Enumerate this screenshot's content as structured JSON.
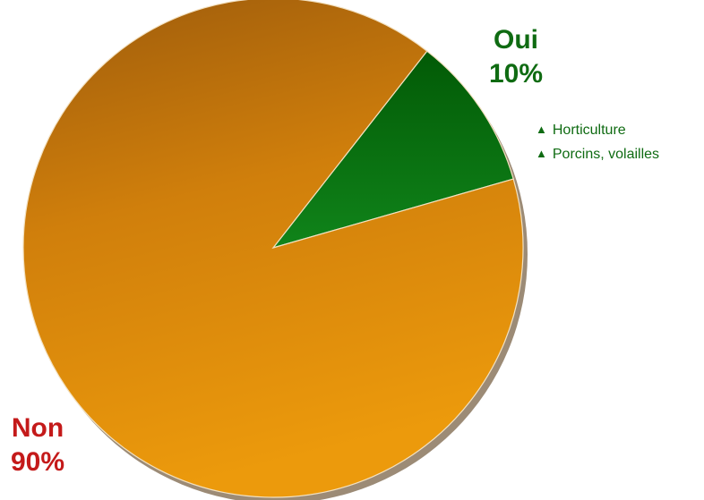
{
  "chart_data": {
    "type": "pie",
    "title": "",
    "slices": [
      {
        "label": "Oui",
        "value": 10,
        "value_label": "10%",
        "color": "#0d7a10",
        "label_color": "#0f6b12"
      },
      {
        "label": "Non",
        "value": 90,
        "value_label": "90%",
        "color": "#d07f0c",
        "label_color": "#c41a1a"
      }
    ],
    "annotations": {
      "items": [
        "Horticulture",
        "Porcins, volailles"
      ],
      "marker_icon": "triangle-up-icon",
      "color": "#0f6b12"
    }
  }
}
